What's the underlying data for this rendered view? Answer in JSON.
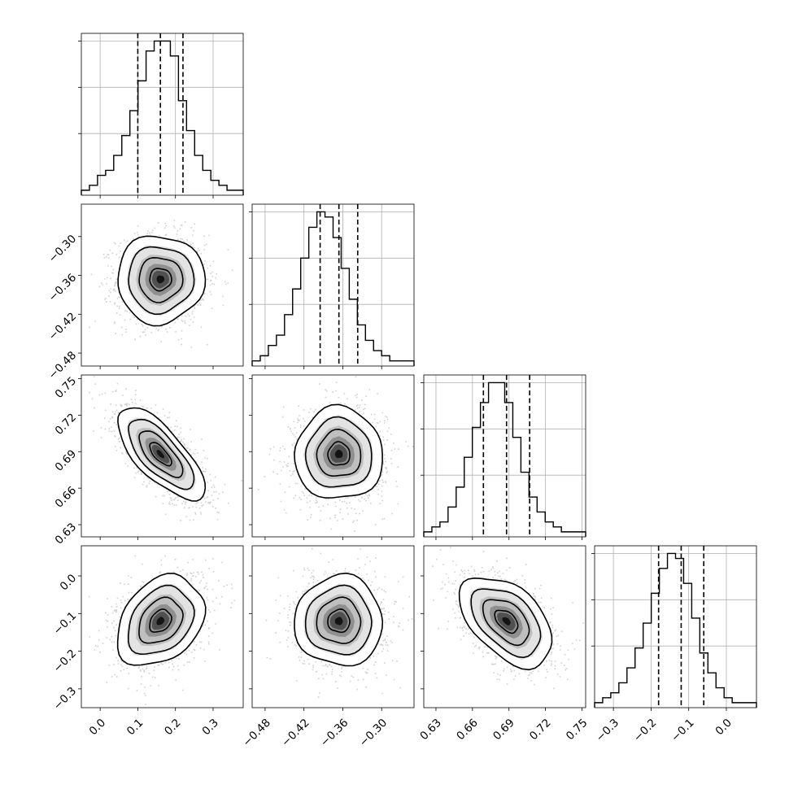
{
  "chart_data": {
    "type": "corner",
    "grid": true,
    "quantiles": [
      0.16,
      0.5,
      0.84
    ],
    "sigma_levels": [
      0.5,
      1.0,
      1.5,
      2.0
    ],
    "parameters": [
      {
        "mean": 0.16,
        "sigma": 0.058,
        "range": [
          -0.05,
          0.38
        ],
        "quantile_values": [
          0.1,
          0.16,
          0.22
        ],
        "ticks": [
          0.0,
          0.1,
          0.2,
          0.3
        ],
        "tick_labels": [
          "0.0",
          "0.1",
          "0.2",
          "0.3"
        ],
        "hist": [
          1,
          2,
          4,
          5,
          8,
          12,
          17,
          23,
          29,
          31,
          31,
          28,
          19,
          13,
          8,
          5,
          3,
          2,
          1,
          1
        ]
      },
      {
        "mean": -0.366,
        "sigma": 0.034,
        "range": [
          -0.5,
          -0.25
        ],
        "quantile_values": [
          -0.395,
          -0.366,
          -0.337
        ],
        "ticks": [
          -0.48,
          -0.42,
          -0.36,
          -0.3
        ],
        "tick_labels": [
          "−0.48",
          "−0.42",
          "−0.36",
          "−0.30"
        ],
        "hist": [
          1,
          2,
          4,
          6,
          10,
          15,
          21,
          27,
          30,
          29,
          25,
          19,
          13,
          8,
          5,
          3,
          2,
          1,
          1,
          1
        ]
      },
      {
        "mean": 0.688,
        "sigma": 0.019,
        "range": [
          0.62,
          0.753
        ],
        "quantile_values": [
          0.669,
          0.688,
          0.707
        ],
        "ticks": [
          0.63,
          0.66,
          0.69,
          0.72,
          0.75
        ],
        "tick_labels": [
          "0.63",
          "0.66",
          "0.69",
          "0.72",
          "0.75"
        ],
        "hist": [
          1,
          2,
          3,
          6,
          10,
          16,
          22,
          27,
          31,
          31,
          27,
          20,
          13,
          8,
          5,
          3,
          2,
          1,
          1,
          1
        ]
      },
      {
        "mean": -0.12,
        "sigma": 0.06,
        "range": [
          -0.35,
          0.08
        ],
        "quantile_values": [
          -0.18,
          -0.12,
          -0.06
        ],
        "ticks": [
          -0.3,
          -0.2,
          -0.1,
          0.0
        ],
        "tick_labels": [
          "−0.3",
          "−0.2",
          "−0.1",
          "0.0"
        ],
        "hist": [
          1,
          2,
          3,
          5,
          8,
          12,
          17,
          23,
          28,
          31,
          30,
          25,
          18,
          11,
          7,
          4,
          2,
          1,
          1,
          1
        ]
      }
    ],
    "correlations": [
      {
        "pair": [
          0,
          1
        ],
        "rho": 0.0
      },
      {
        "pair": [
          0,
          2
        ],
        "rho": -0.72
      },
      {
        "pair": [
          1,
          2
        ],
        "rho": 0.0
      },
      {
        "pair": [
          0,
          3
        ],
        "rho": 0.3
      },
      {
        "pair": [
          1,
          3
        ],
        "rho": 0.0
      },
      {
        "pair": [
          2,
          3
        ],
        "rho": -0.48
      }
    ]
  }
}
